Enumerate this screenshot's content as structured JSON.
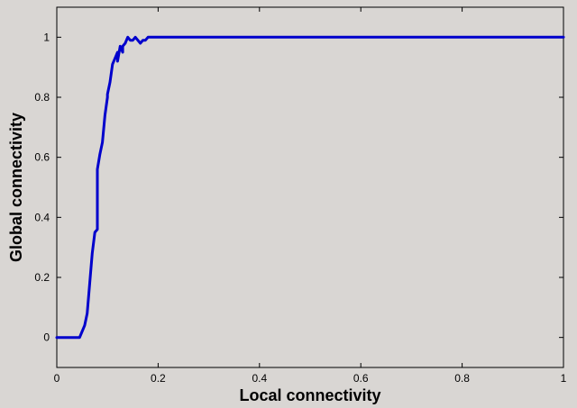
{
  "chart_data": {
    "type": "line",
    "title": "",
    "xlabel": "Local connectivity",
    "ylabel": "Global connectivity",
    "xlim": [
      0,
      1
    ],
    "ylim": [
      -0.1,
      1.1
    ],
    "xticks": [
      0,
      0.2,
      0.4,
      0.6,
      0.8,
      1
    ],
    "xtick_labels": [
      "0",
      "0.2",
      "0.4",
      "0.6",
      "0.8",
      "1"
    ],
    "yticks": [
      0,
      0.2,
      0.4,
      0.6,
      0.8,
      1
    ],
    "ytick_labels": [
      "0",
      "0.2",
      "0.4",
      "0.6",
      "0.8",
      "1"
    ],
    "grid": false,
    "legend": "none",
    "colors": {
      "background": "#d9d6d3",
      "plot_background": "#d9d6d3",
      "axis": "#000000",
      "series": "#0000cc"
    },
    "series": [
      {
        "x": [
          0,
          0.045,
          0.05,
          0.055,
          0.06,
          0.065,
          0.07,
          0.075,
          0.08,
          0.08,
          0.085,
          0.09,
          0.095,
          0.1,
          0.1,
          0.105,
          0.11,
          0.11,
          0.115,
          0.12,
          0.12,
          0.125,
          0.13,
          0.13,
          0.135,
          0.14,
          0.145,
          0.15,
          0.155,
          0.16,
          0.165,
          0.17,
          0.175,
          0.18,
          0.185,
          0.2,
          0.3,
          0.5,
          0.7,
          0.9,
          1.0
        ],
        "values": [
          0,
          0,
          0.02,
          0.04,
          0.08,
          0.18,
          0.28,
          0.35,
          0.36,
          0.56,
          0.61,
          0.65,
          0.74,
          0.8,
          0.81,
          0.85,
          0.91,
          0.91,
          0.93,
          0.95,
          0.92,
          0.97,
          0.95,
          0.97,
          0.98,
          1.0,
          0.99,
          0.99,
          1.0,
          0.99,
          0.98,
          0.99,
          0.99,
          1.0,
          1.0,
          1.0,
          1.0,
          1.0,
          1.0,
          1.0,
          1.0
        ]
      }
    ]
  }
}
